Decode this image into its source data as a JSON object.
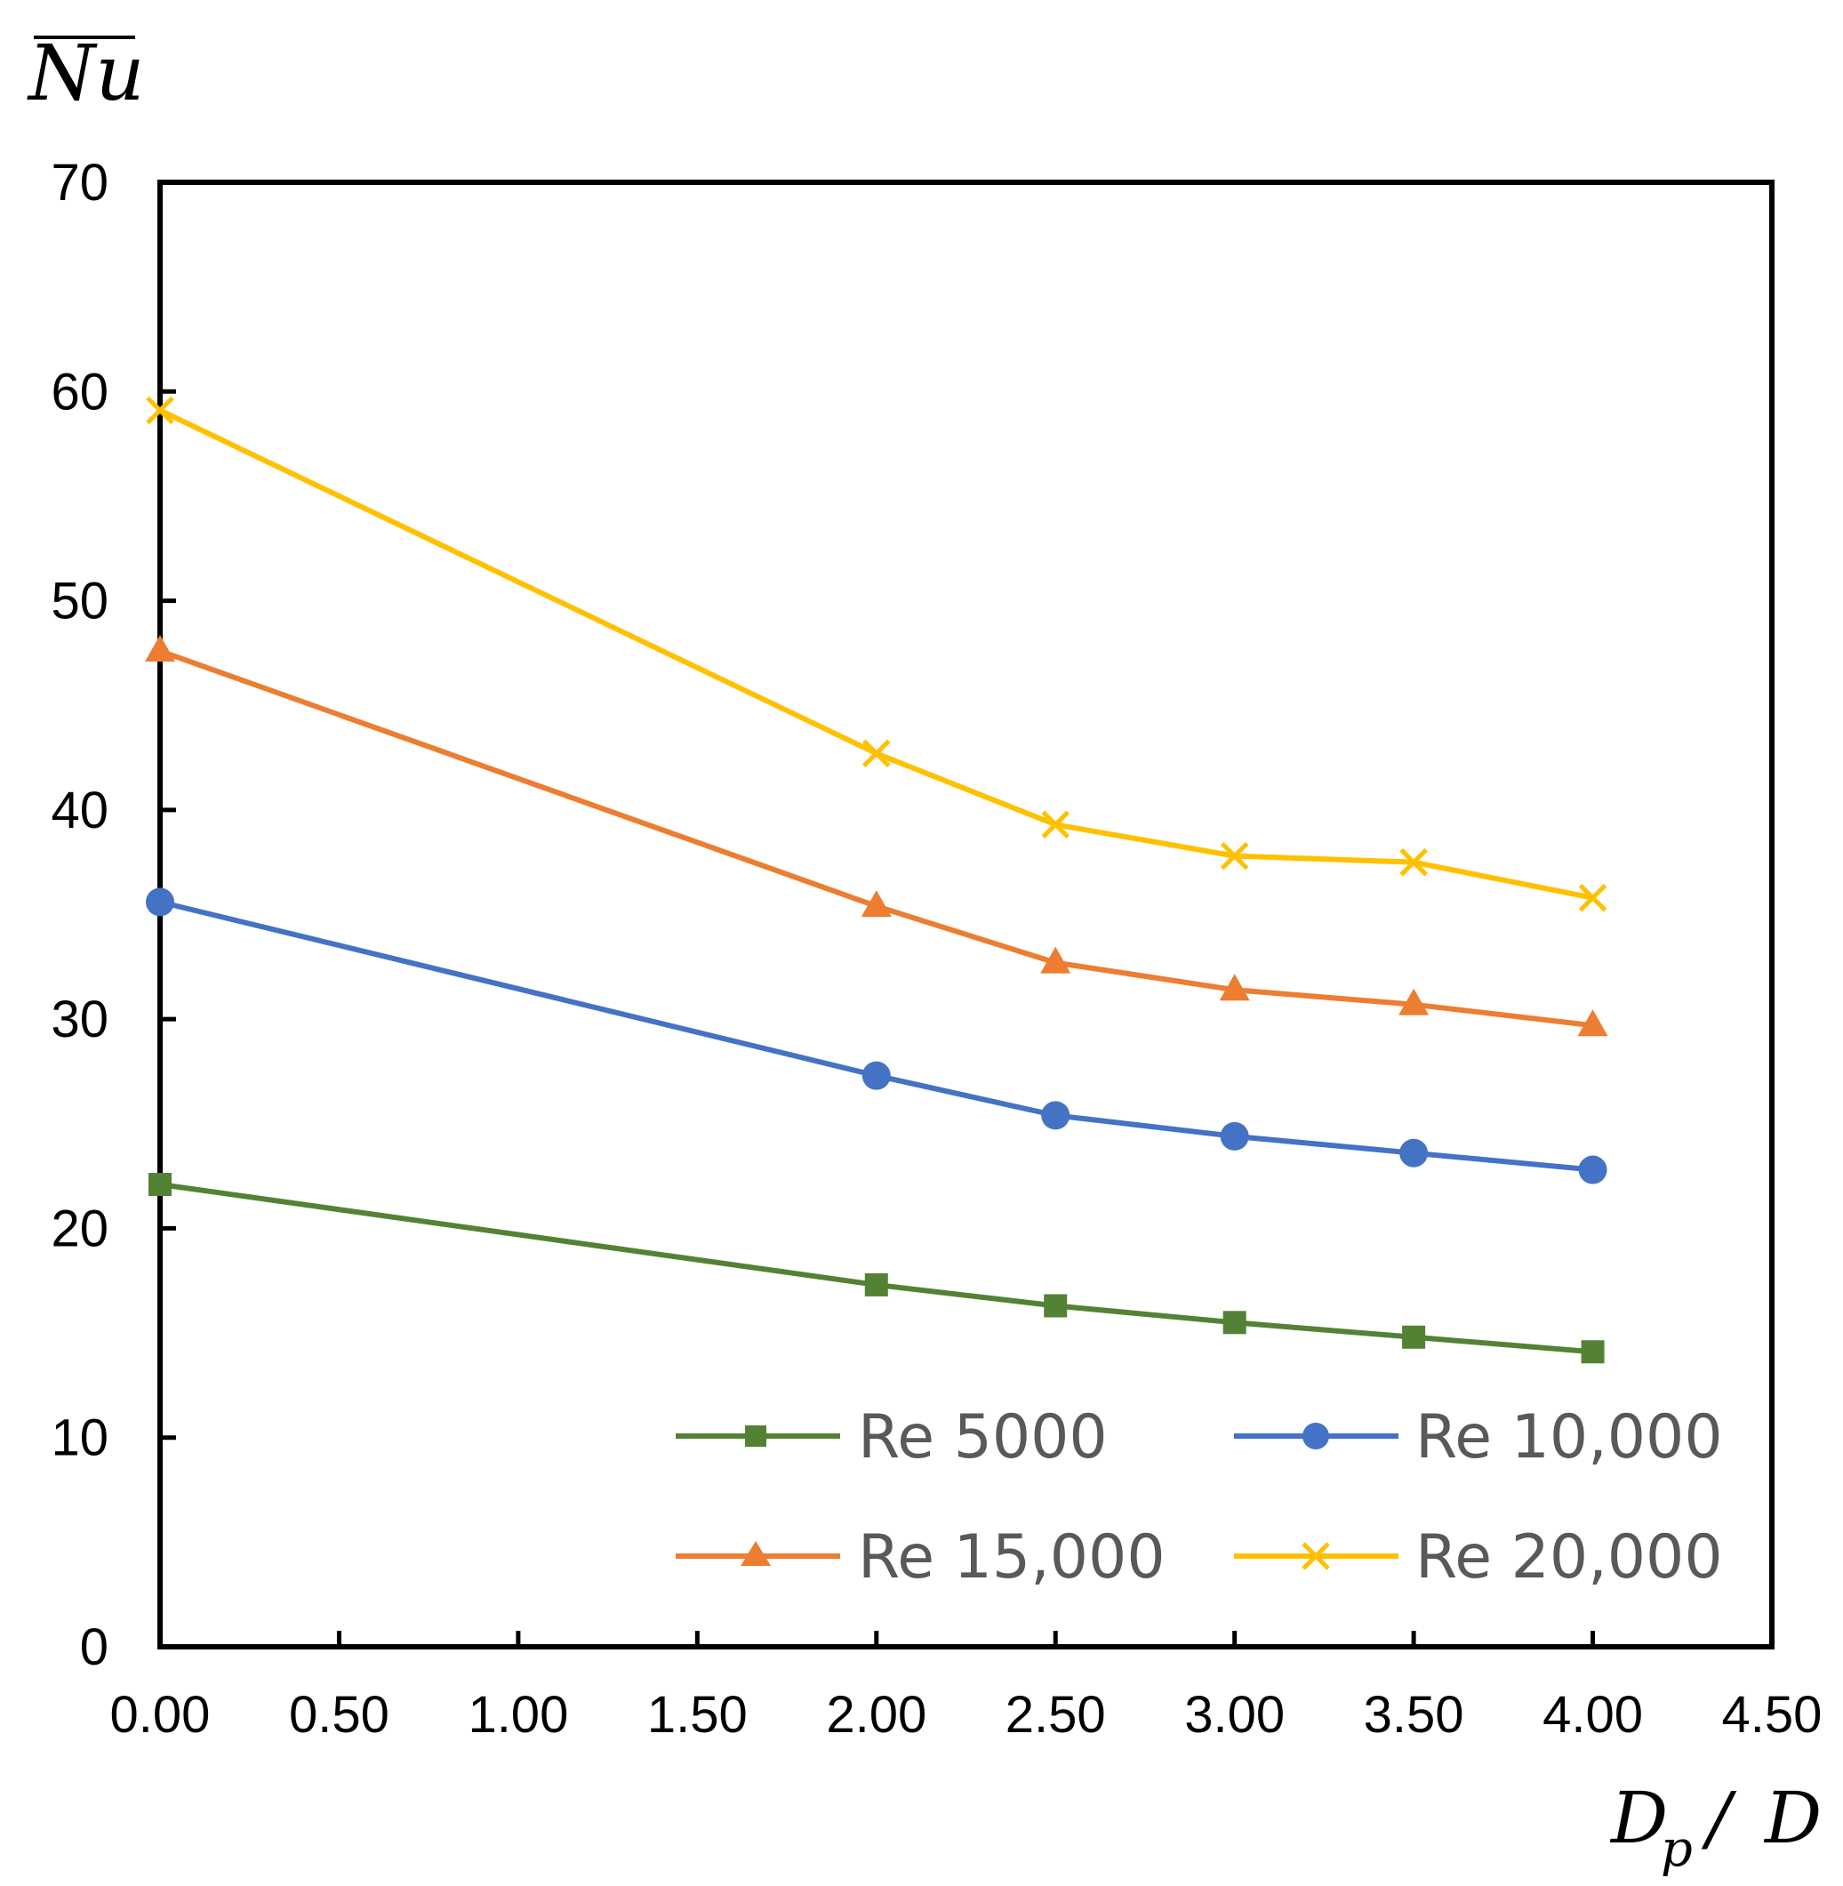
{
  "chart_data": {
    "type": "line",
    "ylabel": "Nu",
    "xlabel_main": "D",
    "xlabel_sub": "p",
    "xlabel_sep": "/",
    "xlabel_den": "D",
    "xlim": [
      0,
      4.5
    ],
    "ylim": [
      0,
      70
    ],
    "x_ticks": [
      "0.00",
      "0.50",
      "1.00",
      "1.50",
      "2.00",
      "2.50",
      "3.00",
      "3.50",
      "4.00",
      "4.50"
    ],
    "y_ticks": [
      "0",
      "10",
      "20",
      "30",
      "40",
      "50",
      "60",
      "70"
    ],
    "x": [
      0,
      2.0,
      2.5,
      3.0,
      3.5,
      4.0
    ],
    "grid": false,
    "legend_position": "bottom-right",
    "series": [
      {
        "name": "Re 5000",
        "color": "#548235",
        "marker": "square",
        "values": [
          22.1,
          17.3,
          16.3,
          15.5,
          14.8,
          14.1
        ]
      },
      {
        "name": "Re 10,000",
        "color": "#4472C4",
        "marker": "circle",
        "values": [
          35.6,
          27.3,
          25.4,
          24.4,
          23.6,
          22.8
        ]
      },
      {
        "name": "Re 15,000",
        "color": "#ED7D31",
        "marker": "triangle",
        "values": [
          47.6,
          35.4,
          32.7,
          31.4,
          30.7,
          29.7
        ]
      },
      {
        "name": "Re 20,000",
        "color": "#FFC000",
        "marker": "x",
        "values": [
          59.1,
          42.7,
          39.3,
          37.8,
          37.5,
          35.8
        ]
      }
    ]
  }
}
